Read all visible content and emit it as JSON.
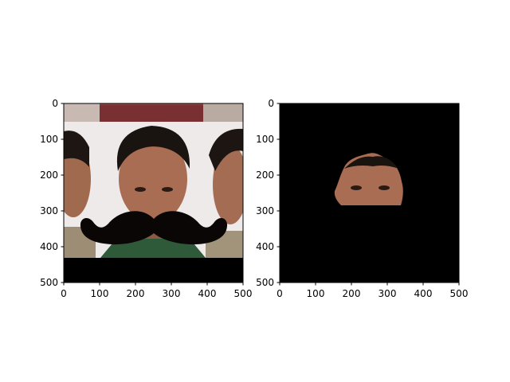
{
  "figure": {
    "background": "#ffffff"
  },
  "chart_data": [
    {
      "type": "image",
      "title": "",
      "xlabel": "",
      "ylabel": "",
      "xlim": [
        0,
        500
      ],
      "ylim": [
        500,
        0
      ],
      "y_inverted": true,
      "xticks": [
        0,
        100,
        200,
        300,
        400,
        500
      ],
      "yticks": [
        0,
        100,
        200,
        300,
        400,
        500
      ],
      "content": "photo of three men, centre face overlaid with a large black moustache",
      "letterbox_color": "#000000",
      "overlay_color": "#0b0606"
    },
    {
      "type": "image",
      "title": "",
      "xlabel": "",
      "ylabel": "",
      "xlim": [
        0,
        500
      ],
      "ylim": [
        500,
        0
      ],
      "y_inverted": true,
      "xticks": [
        0,
        100,
        200,
        300,
        400,
        500
      ],
      "yticks": [
        0,
        100,
        200,
        300,
        400,
        500
      ],
      "content": "masked face region on a black background",
      "background_color": "#000000"
    }
  ]
}
